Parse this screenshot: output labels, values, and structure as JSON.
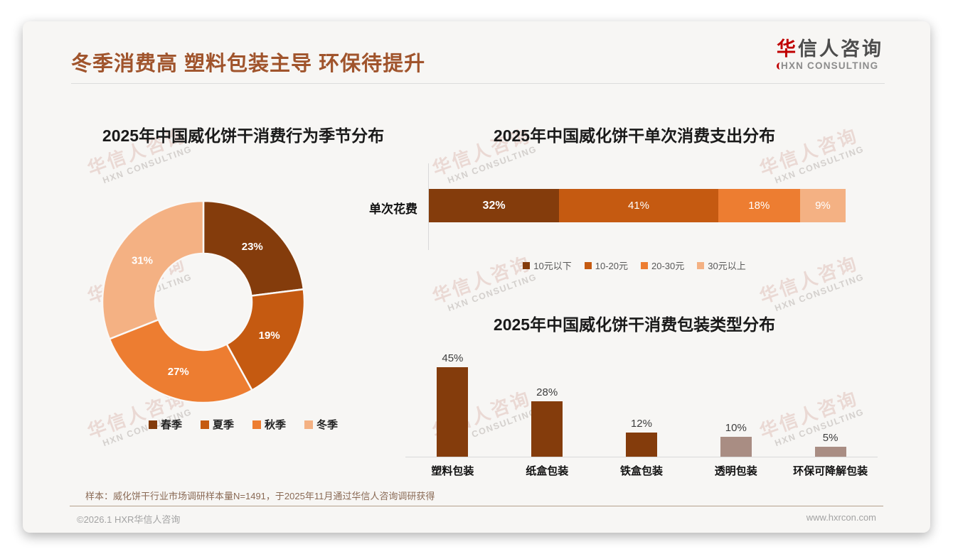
{
  "header": {
    "title": "冬季消费高 塑料包装主导 环保待提升",
    "logo_cn_first": "华",
    "logo_cn_rest": "信人咨询",
    "logo_en": "HXN CONSULTING"
  },
  "watermark": {
    "cn": "华信人咨询",
    "en": "HXN CONSULTING"
  },
  "colors": {
    "title_brown": "#A0542C",
    "logo_red": "#C00000",
    "palette": [
      "#843C0C",
      "#C55A11",
      "#ED7D31",
      "#F4B183"
    ],
    "bar_brown": "#843C0C",
    "bar_mauve": "#A98D83"
  },
  "chart_data": [
    {
      "type": "pie",
      "variant": "donut",
      "title": "2025年中国威化饼干消费行为季节分布",
      "categories": [
        "春季",
        "夏季",
        "秋季",
        "冬季"
      ],
      "values": [
        23,
        19,
        27,
        31
      ],
      "labels": [
        "23%",
        "19%",
        "27%",
        "31%"
      ],
      "colors": [
        "#843C0C",
        "#C55A11",
        "#ED7D31",
        "#F4B183"
      ],
      "legend_position": "bottom"
    },
    {
      "type": "bar",
      "variant": "stacked-horizontal",
      "title": "2025年中国威化饼干单次消费支出分布",
      "category_label": "单次花费",
      "series": [
        {
          "name": "10元以下",
          "value": 32,
          "label": "32%",
          "color": "#843C0C"
        },
        {
          "name": "10-20元",
          "value": 41,
          "label": "41%",
          "color": "#C55A11"
        },
        {
          "name": "20-30元",
          "value": 18,
          "label": "18%",
          "color": "#ED7D31"
        },
        {
          "name": "30元以上",
          "value": 9,
          "label": "9%",
          "color": "#F4B183"
        }
      ],
      "xlim": [
        0,
        100
      ],
      "legend_position": "bottom"
    },
    {
      "type": "bar",
      "variant": "vertical",
      "title": "2025年中国威化饼干消费包装类型分布",
      "categories": [
        "塑料包装",
        "纸盒包装",
        "铁盒包装",
        "透明包装",
        "环保可降解包装"
      ],
      "values": [
        45,
        28,
        12,
        10,
        5
      ],
      "labels": [
        "45%",
        "28%",
        "12%",
        "10%",
        "5%"
      ],
      "colors": [
        "#843C0C",
        "#843C0C",
        "#843C0C",
        "#A98D83",
        "#A98D83"
      ],
      "ylim": [
        0,
        50
      ],
      "grid": false
    }
  ],
  "source_note": "样本：威化饼干行业市场调研样本量N=1491，于2025年11月通过华信人咨询调研获得",
  "footer": {
    "copyright": "©2026.1 HXR华信人咨询",
    "website": "www.hxrcon.com"
  }
}
